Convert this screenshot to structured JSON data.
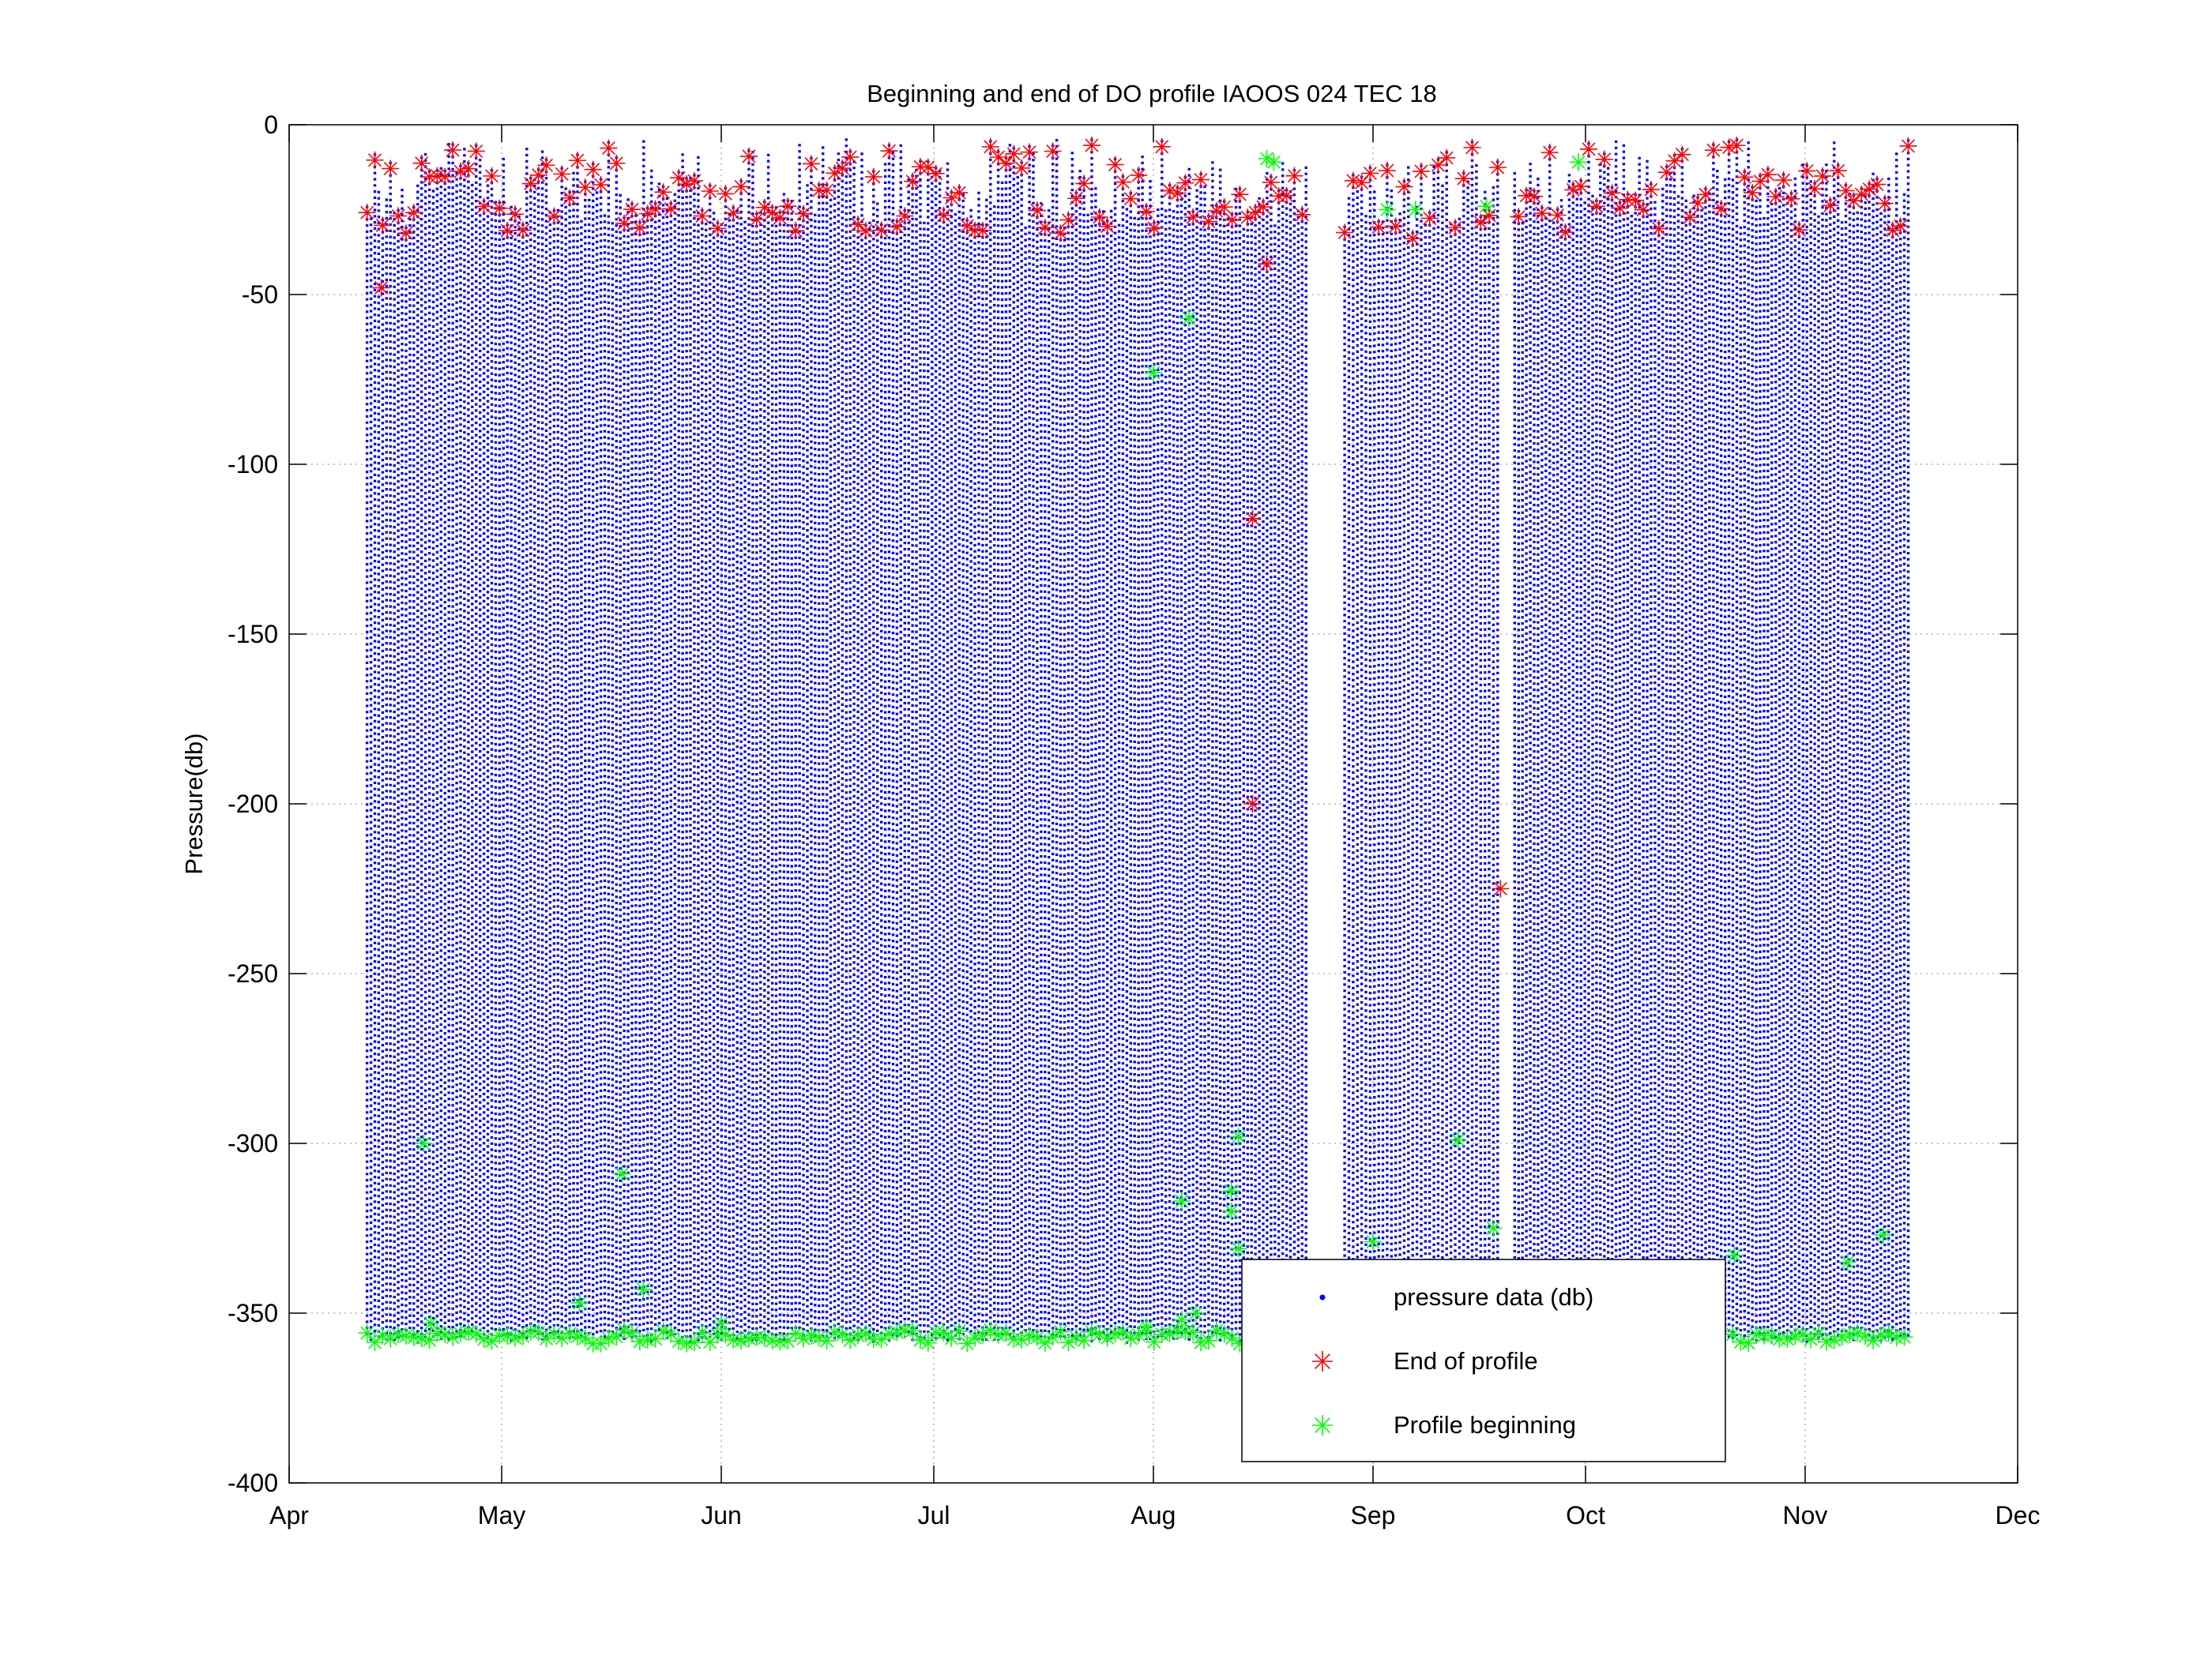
{
  "chart_data": {
    "type": "scatter",
    "title": "Beginning and end of DO profile IAOOS 024 TEC 18",
    "xlabel": "",
    "ylabel": "Pressure(db)",
    "x_axis": "date",
    "xlim": [
      "Apr",
      "Dec"
    ],
    "x_ticks": [
      "Apr",
      "May",
      "Jun",
      "Jul",
      "Aug",
      "Sep",
      "Oct",
      "Nov",
      "Dec"
    ],
    "ylim": [
      -400,
      0
    ],
    "y_ticks": [
      0,
      -50,
      -100,
      -150,
      -200,
      -250,
      -300,
      -350,
      -400
    ],
    "grid": true,
    "legend_position": "bottom-right",
    "colors": {
      "pressure": "#0000ff",
      "end": "#ff0000",
      "begin": "#00ff00"
    },
    "series": [
      {
        "name": "pressure data (db)",
        "marker": "dot",
        "description_ranges": [
          [
            "Apr 12",
            "Aug 23"
          ],
          [
            "Aug 28",
            "Sep 19"
          ],
          [
            "Sep 21",
            "Nov 16"
          ]
        ],
        "depth_range": [
          -359,
          -4
        ]
      },
      {
        "name": "End of profile",
        "marker": "asterisk",
        "values_typical": "-5 to -30",
        "outliers": [
          {
            "x": "Apr 14",
            "y": -48
          },
          {
            "x": "Aug 15",
            "y": -116
          },
          {
            "x": "Aug 15",
            "y": -200
          },
          {
            "x": "Aug 17",
            "y": -41
          },
          {
            "x": "Sep 19",
            "y": -225
          }
        ]
      },
      {
        "name": "Profile beginning",
        "marker": "asterisk",
        "values_typical": "-355 to -359",
        "outliers": [
          {
            "x": "Apr 20",
            "y": -300
          },
          {
            "x": "Apr 21",
            "y": -353
          },
          {
            "x": "May 12",
            "y": -347
          },
          {
            "x": "May 18",
            "y": -309
          },
          {
            "x": "May 21",
            "y": -343
          },
          {
            "x": "Jun 1",
            "y": -353
          },
          {
            "x": "Jul 31",
            "y": -354
          },
          {
            "x": "Aug 1",
            "y": -73
          },
          {
            "x": "Aug 5",
            "y": -317
          },
          {
            "x": "Aug 5",
            "y": -352
          },
          {
            "x": "Aug 6",
            "y": -57
          },
          {
            "x": "Aug 7",
            "y": -350
          },
          {
            "x": "Aug 12",
            "y": -314
          },
          {
            "x": "Aug 12",
            "y": -320
          },
          {
            "x": "Aug 13",
            "y": -298
          },
          {
            "x": "Aug 13",
            "y": -331
          },
          {
            "x": "Aug 17",
            "y": -10
          },
          {
            "x": "Aug 18",
            "y": -11
          },
          {
            "x": "Sep 1",
            "y": -329
          },
          {
            "x": "Sep 3",
            "y": -25
          },
          {
            "x": "Sep 7",
            "y": -25
          },
          {
            "x": "Sep 13",
            "y": -299
          },
          {
            "x": "Sep 17",
            "y": -24
          },
          {
            "x": "Sep 18",
            "y": -325
          },
          {
            "x": "Sep 30",
            "y": -11
          },
          {
            "x": "Oct 22",
            "y": -333
          },
          {
            "x": "Nov 7",
            "y": -335
          },
          {
            "x": "Nov 12",
            "y": -327
          }
        ]
      }
    ]
  }
}
